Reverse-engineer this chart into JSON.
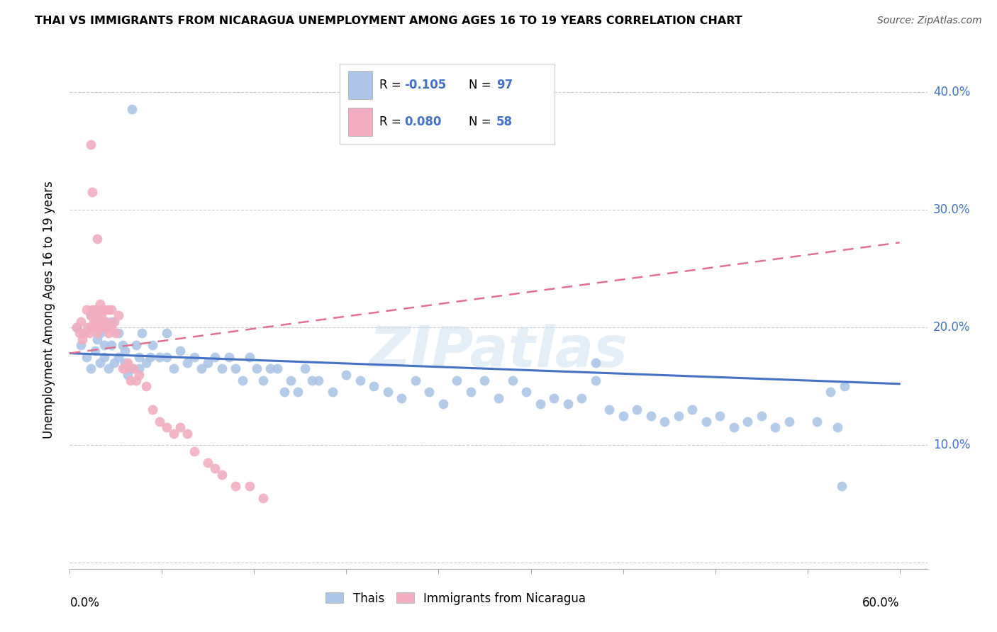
{
  "title": "THAI VS IMMIGRANTS FROM NICARAGUA UNEMPLOYMENT AMONG AGES 16 TO 19 YEARS CORRELATION CHART",
  "source": "Source: ZipAtlas.com",
  "ylabel": "Unemployment Among Ages 16 to 19 years",
  "legend_label1": "Thais",
  "legend_label2": "Immigrants from Nicaragua",
  "blue_color": "#adc6e8",
  "pink_color": "#f2aec0",
  "blue_line_color": "#4472c4",
  "pink_line_color": "#e07090",
  "watermark": "ZIPatlas",
  "xlim": [
    0.0,
    0.62
  ],
  "ylim": [
    -0.005,
    0.435
  ],
  "R1": -0.105,
  "N1": 97,
  "R2": 0.08,
  "N2": 58,
  "blue_trend_x": [
    0.0,
    0.6
  ],
  "blue_trend_y": [
    0.178,
    0.152
  ],
  "pink_trend_x": [
    0.0,
    0.6
  ],
  "pink_trend_y": [
    0.178,
    0.272
  ],
  "blue_x": [
    0.005,
    0.008,
    0.01,
    0.012,
    0.015,
    0.015,
    0.018,
    0.02,
    0.02,
    0.022,
    0.022,
    0.025,
    0.025,
    0.028,
    0.03,
    0.03,
    0.032,
    0.035,
    0.035,
    0.038,
    0.04,
    0.04,
    0.042,
    0.045,
    0.048,
    0.05,
    0.05,
    0.052,
    0.055,
    0.058,
    0.06,
    0.065,
    0.07,
    0.07,
    0.075,
    0.08,
    0.085,
    0.09,
    0.095,
    0.1,
    0.105,
    0.11,
    0.115,
    0.12,
    0.125,
    0.13,
    0.135,
    0.14,
    0.145,
    0.15,
    0.155,
    0.16,
    0.165,
    0.17,
    0.175,
    0.18,
    0.19,
    0.2,
    0.21,
    0.22,
    0.23,
    0.24,
    0.25,
    0.26,
    0.27,
    0.28,
    0.29,
    0.3,
    0.31,
    0.32,
    0.33,
    0.34,
    0.35,
    0.36,
    0.37,
    0.38,
    0.39,
    0.4,
    0.41,
    0.42,
    0.43,
    0.44,
    0.45,
    0.46,
    0.47,
    0.48,
    0.49,
    0.5,
    0.51,
    0.52,
    0.045,
    0.38,
    0.54,
    0.55,
    0.555,
    0.558,
    0.56
  ],
  "blue_y": [
    0.2,
    0.185,
    0.195,
    0.175,
    0.165,
    0.21,
    0.18,
    0.19,
    0.215,
    0.17,
    0.195,
    0.175,
    0.185,
    0.165,
    0.185,
    0.205,
    0.17,
    0.195,
    0.175,
    0.185,
    0.17,
    0.18,
    0.16,
    0.165,
    0.185,
    0.175,
    0.165,
    0.195,
    0.17,
    0.175,
    0.185,
    0.175,
    0.175,
    0.195,
    0.165,
    0.18,
    0.17,
    0.175,
    0.165,
    0.17,
    0.175,
    0.165,
    0.175,
    0.165,
    0.155,
    0.175,
    0.165,
    0.155,
    0.165,
    0.165,
    0.145,
    0.155,
    0.145,
    0.165,
    0.155,
    0.155,
    0.145,
    0.16,
    0.155,
    0.15,
    0.145,
    0.14,
    0.155,
    0.145,
    0.135,
    0.155,
    0.145,
    0.155,
    0.14,
    0.155,
    0.145,
    0.135,
    0.14,
    0.135,
    0.14,
    0.155,
    0.13,
    0.125,
    0.13,
    0.125,
    0.12,
    0.125,
    0.13,
    0.12,
    0.125,
    0.115,
    0.12,
    0.125,
    0.115,
    0.12,
    0.385,
    0.17,
    0.12,
    0.145,
    0.115,
    0.065,
    0.15
  ],
  "pink_x": [
    0.005,
    0.007,
    0.008,
    0.009,
    0.01,
    0.012,
    0.013,
    0.014,
    0.015,
    0.015,
    0.016,
    0.017,
    0.018,
    0.018,
    0.019,
    0.02,
    0.02,
    0.021,
    0.022,
    0.022,
    0.023,
    0.024,
    0.024,
    0.025,
    0.025,
    0.026,
    0.027,
    0.028,
    0.028,
    0.03,
    0.03,
    0.032,
    0.033,
    0.035,
    0.038,
    0.04,
    0.042,
    0.044,
    0.046,
    0.048,
    0.05,
    0.055,
    0.06,
    0.065,
    0.07,
    0.075,
    0.08,
    0.085,
    0.09,
    0.1,
    0.105,
    0.11,
    0.12,
    0.13,
    0.14,
    0.015,
    0.016,
    0.02
  ],
  "pink_y": [
    0.2,
    0.195,
    0.205,
    0.19,
    0.195,
    0.215,
    0.2,
    0.195,
    0.21,
    0.2,
    0.215,
    0.205,
    0.2,
    0.215,
    0.205,
    0.195,
    0.21,
    0.2,
    0.215,
    0.22,
    0.21,
    0.205,
    0.215,
    0.2,
    0.215,
    0.205,
    0.2,
    0.195,
    0.215,
    0.2,
    0.215,
    0.205,
    0.195,
    0.21,
    0.165,
    0.165,
    0.17,
    0.155,
    0.165,
    0.155,
    0.16,
    0.15,
    0.13,
    0.12,
    0.115,
    0.11,
    0.115,
    0.11,
    0.095,
    0.085,
    0.08,
    0.075,
    0.065,
    0.065,
    0.055,
    0.355,
    0.315,
    0.275
  ]
}
